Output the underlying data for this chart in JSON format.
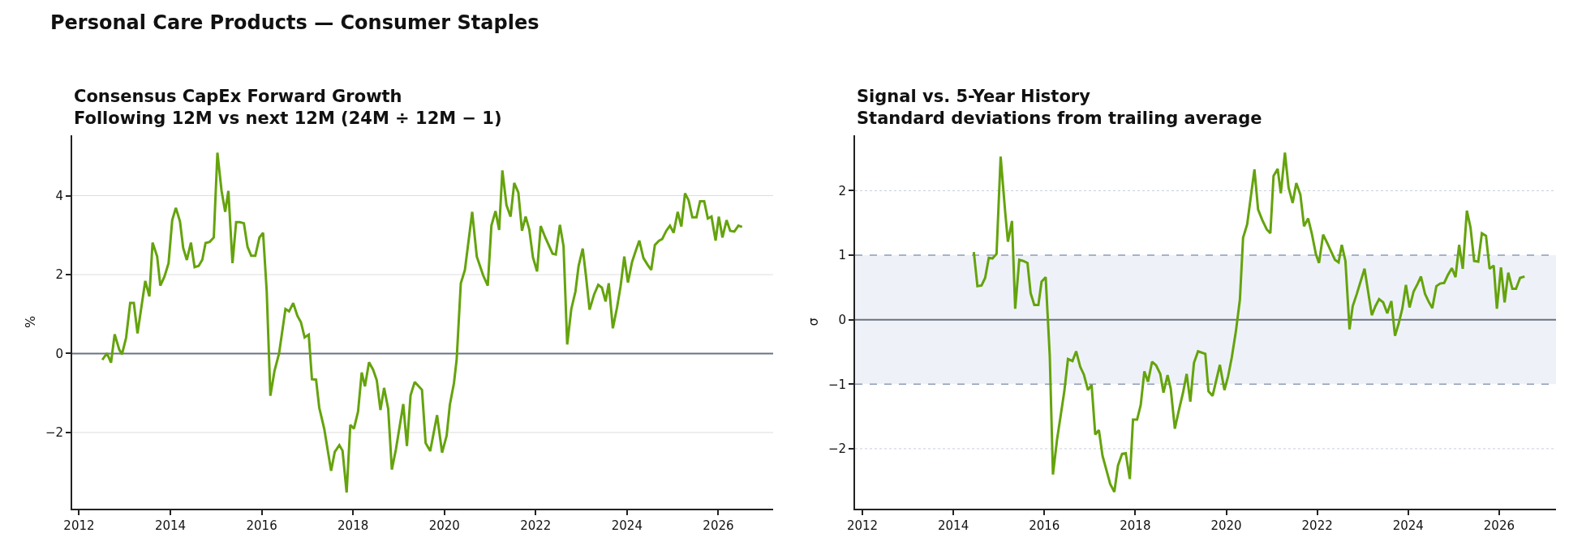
{
  "chart_data": [
    {
      "type": "line",
      "title": "Consensus CapEx Forward Growth",
      "subtitle": "Following 12M vs next 12M (24M ÷ 12M − 1)",
      "ylabel": "%",
      "annotations": [
        "Personal Care Products — Consumer Staples"
      ],
      "x": [
        2012.51,
        2012.61,
        2012.7,
        2012.78,
        2012.88,
        2012.94,
        2013.03,
        2013.12,
        2013.2,
        2013.28,
        2013.45,
        2013.54,
        2013.61,
        2013.71,
        2013.78,
        2013.87,
        2013.96,
        2014.04,
        2014.12,
        2014.21,
        2014.28,
        2014.36,
        2014.45,
        2014.53,
        2014.62,
        2014.7,
        2014.77,
        2014.86,
        2014.95,
        2015.03,
        2015.12,
        2015.2,
        2015.27,
        2015.36,
        2015.44,
        2015.52,
        2015.61,
        2015.69,
        2015.77,
        2015.86,
        2015.95,
        2016.03,
        2016.11,
        2016.19,
        2016.28,
        2016.38,
        2016.52,
        2016.6,
        2016.69,
        2016.78,
        2016.86,
        2016.94,
        2017.03,
        2017.1,
        2017.19,
        2017.26,
        2017.37,
        2017.52,
        2017.6,
        2017.7,
        2017.77,
        2017.86,
        2017.94,
        2018.02,
        2018.11,
        2018.19,
        2018.26,
        2018.35,
        2018.44,
        2018.52,
        2018.6,
        2018.68,
        2018.77,
        2018.85,
        2018.94,
        2019.1,
        2019.18,
        2019.26,
        2019.35,
        2019.51,
        2019.59,
        2019.69,
        2019.84,
        2019.95,
        2020.05,
        2020.12,
        2020.21,
        2020.27,
        2020.36,
        2020.45,
        2020.61,
        2020.71,
        2020.85,
        2020.95,
        2021.03,
        2021.12,
        2021.2,
        2021.27,
        2021.36,
        2021.45,
        2021.53,
        2021.62,
        2021.7,
        2021.78,
        2021.86,
        2021.94,
        2022.03,
        2022.11,
        2022.21,
        2022.37,
        2022.44,
        2022.53,
        2022.61,
        2022.69,
        2022.78,
        2022.87,
        2022.94,
        2023.03,
        2023.1,
        2023.18,
        2023.28,
        2023.37,
        2023.45,
        2023.53,
        2023.6,
        2023.69,
        2023.78,
        2023.86,
        2023.94,
        2024.02,
        2024.11,
        2024.19,
        2024.27,
        2024.36,
        2024.45,
        2024.53,
        2024.61,
        2024.7,
        2024.77,
        2024.86,
        2024.94,
        2025.02,
        2025.11,
        2025.19,
        2025.27,
        2025.35,
        2025.43,
        2025.52,
        2025.6,
        2025.69,
        2025.77,
        2025.85,
        2025.94,
        2026.01,
        2026.09,
        2026.18,
        2026.26,
        2026.35,
        2026.44,
        2026.52
      ],
      "series": [
        {
          "color": "#65a30d",
          "values": [
            -0.16,
            0.01,
            -0.23,
            0.49,
            0.1,
            -0.02,
            0.4,
            1.28,
            1.28,
            0.51,
            1.84,
            1.45,
            2.81,
            2.46,
            1.72,
            1.95,
            2.29,
            3.38,
            3.69,
            3.35,
            2.68,
            2.37,
            2.81,
            2.19,
            2.22,
            2.38,
            2.8,
            2.83,
            2.94,
            5.09,
            4.13,
            3.59,
            4.12,
            2.29,
            3.33,
            3.33,
            3.3,
            2.7,
            2.48,
            2.48,
            2.94,
            3.06,
            1.57,
            -1.07,
            -0.44,
            0.0,
            1.13,
            1.07,
            1.28,
            0.96,
            0.79,
            0.41,
            0.48,
            -0.65,
            -0.66,
            -1.37,
            -1.91,
            -2.97,
            -2.49,
            -2.32,
            -2.46,
            -3.52,
            -1.81,
            -1.9,
            -1.47,
            -0.48,
            -0.83,
            -0.22,
            -0.41,
            -0.68,
            -1.43,
            -0.87,
            -1.4,
            -2.94,
            -2.42,
            -1.28,
            -2.34,
            -1.06,
            -0.72,
            -0.92,
            -2.27,
            -2.47,
            -1.56,
            -2.51,
            -2.08,
            -1.3,
            -0.75,
            -0.14,
            1.78,
            2.12,
            3.59,
            2.46,
            1.98,
            1.72,
            3.24,
            3.61,
            3.13,
            4.64,
            3.76,
            3.47,
            4.32,
            4.08,
            3.11,
            3.47,
            3.14,
            2.44,
            2.08,
            3.23,
            2.94,
            2.53,
            2.51,
            3.26,
            2.72,
            0.23,
            1.13,
            1.57,
            2.22,
            2.66,
            1.98,
            1.11,
            1.5,
            1.74,
            1.67,
            1.32,
            1.78,
            0.64,
            1.16,
            1.71,
            2.46,
            1.8,
            2.32,
            2.6,
            2.86,
            2.42,
            2.25,
            2.12,
            2.75,
            2.86,
            2.9,
            3.11,
            3.24,
            3.06,
            3.59,
            3.22,
            4.06,
            3.88,
            3.45,
            3.45,
            3.86,
            3.86,
            3.42,
            3.47,
            2.86,
            3.47,
            2.94,
            3.38,
            3.11,
            3.09,
            3.24,
            3.21
          ]
        }
      ],
      "xlim": [
        2011.85,
        2027.2
      ],
      "xticks": [
        2012,
        2014,
        2016,
        2018,
        2020,
        2022,
        2024,
        2026
      ],
      "ylim": [
        -3.93,
        5.53
      ],
      "yticks": [
        -2,
        0,
        2,
        4
      ],
      "grid": "y",
      "ref_lines": [
        {
          "axis": "y",
          "value": 0,
          "color": "#6b7280"
        }
      ]
    },
    {
      "type": "line",
      "title": "Signal vs. 5-Year History",
      "subtitle": "Standard deviations from trailing average",
      "ylabel": "σ",
      "x": [
        2014.45,
        2014.53,
        2014.62,
        2014.7,
        2014.78,
        2014.86,
        2014.95,
        2015.04,
        2015.14,
        2015.2,
        2015.29,
        2015.36,
        2015.45,
        2015.54,
        2015.63,
        2015.7,
        2015.78,
        2015.87,
        2015.94,
        2016.03,
        2016.12,
        2016.19,
        2016.28,
        2016.44,
        2016.52,
        2016.62,
        2016.7,
        2016.79,
        2016.87,
        2016.96,
        2017.04,
        2017.12,
        2017.2,
        2017.28,
        2017.45,
        2017.54,
        2017.62,
        2017.71,
        2017.79,
        2017.88,
        2017.95,
        2018.04,
        2018.12,
        2018.2,
        2018.28,
        2018.37,
        2018.46,
        2018.55,
        2018.62,
        2018.71,
        2018.78,
        2018.87,
        2018.96,
        2019.05,
        2019.13,
        2019.21,
        2019.29,
        2019.38,
        2019.54,
        2019.61,
        2019.7,
        2019.86,
        2019.96,
        2020.04,
        2020.12,
        2020.21,
        2020.3,
        2020.37,
        2020.46,
        2020.62,
        2020.7,
        2020.79,
        2020.89,
        2020.97,
        2021.04,
        2021.13,
        2021.2,
        2021.29,
        2021.37,
        2021.46,
        2021.54,
        2021.63,
        2021.71,
        2021.8,
        2021.88,
        2021.97,
        2022.04,
        2022.13,
        2022.22,
        2022.29,
        2022.39,
        2022.47,
        2022.54,
        2022.62,
        2022.71,
        2022.78,
        2022.87,
        2023.04,
        2023.2,
        2023.28,
        2023.36,
        2023.45,
        2023.54,
        2023.63,
        2023.71,
        2023.79,
        2023.87,
        2023.95,
        2024.03,
        2024.12,
        2024.21,
        2024.28,
        2024.37,
        2024.45,
        2024.53,
        2024.62,
        2024.7,
        2024.79,
        2024.87,
        2024.96,
        2025.04,
        2025.12,
        2025.2,
        2025.29,
        2025.37,
        2025.45,
        2025.54,
        2025.62,
        2025.71,
        2025.79,
        2025.88,
        2025.95,
        2026.04,
        2026.12,
        2026.2,
        2026.29,
        2026.37,
        2026.46,
        2026.56
      ],
      "series": [
        {
          "color": "#65a30d",
          "values": [
            1.05,
            0.52,
            0.53,
            0.65,
            0.96,
            0.95,
            1.02,
            2.53,
            1.67,
            1.21,
            1.53,
            0.17,
            0.93,
            0.91,
            0.88,
            0.41,
            0.23,
            0.23,
            0.59,
            0.66,
            -0.56,
            -2.4,
            -1.86,
            -1.11,
            -0.61,
            -0.64,
            -0.49,
            -0.73,
            -0.85,
            -1.09,
            -1.01,
            -1.78,
            -1.71,
            -2.11,
            -2.55,
            -2.67,
            -2.26,
            -2.08,
            -2.07,
            -2.47,
            -1.55,
            -1.55,
            -1.32,
            -0.8,
            -0.96,
            -0.65,
            -0.71,
            -0.84,
            -1.13,
            -0.86,
            -1.07,
            -1.69,
            -1.4,
            -1.13,
            -0.84,
            -1.27,
            -0.67,
            -0.49,
            -0.53,
            -1.11,
            -1.18,
            -0.7,
            -1.09,
            -0.88,
            -0.59,
            -0.19,
            0.31,
            1.27,
            1.48,
            2.33,
            1.71,
            1.55,
            1.4,
            1.34,
            2.23,
            2.34,
            1.96,
            2.59,
            2.05,
            1.81,
            2.12,
            1.94,
            1.45,
            1.57,
            1.34,
            1.02,
            0.88,
            1.32,
            1.19,
            1.08,
            0.93,
            0.89,
            1.16,
            0.91,
            -0.15,
            0.21,
            0.4,
            0.79,
            0.07,
            0.21,
            0.32,
            0.27,
            0.1,
            0.29,
            -0.25,
            -0.06,
            0.17,
            0.54,
            0.19,
            0.44,
            0.56,
            0.67,
            0.4,
            0.28,
            0.18,
            0.52,
            0.56,
            0.57,
            0.69,
            0.8,
            0.66,
            1.16,
            0.79,
            1.69,
            1.43,
            0.91,
            0.9,
            1.34,
            1.3,
            0.79,
            0.84,
            0.17,
            0.81,
            0.27,
            0.73,
            0.48,
            0.48,
            0.65,
            0.67
          ]
        }
      ],
      "xlim": [
        2011.84,
        2027.25
      ],
      "xticks": [
        2012,
        2014,
        2016,
        2018,
        2020,
        2022,
        2024,
        2026
      ],
      "ylim": [
        -2.93,
        2.86
      ],
      "yticks": [
        -2,
        -1,
        0,
        1,
        2
      ],
      "grid": "y",
      "bands": [
        {
          "axis": "y",
          "from": -1,
          "to": 1,
          "color": "#eef2f8"
        }
      ],
      "ref_lines": [
        {
          "axis": "y",
          "value": 0,
          "color": "#6b7280"
        }
      ]
    }
  ]
}
